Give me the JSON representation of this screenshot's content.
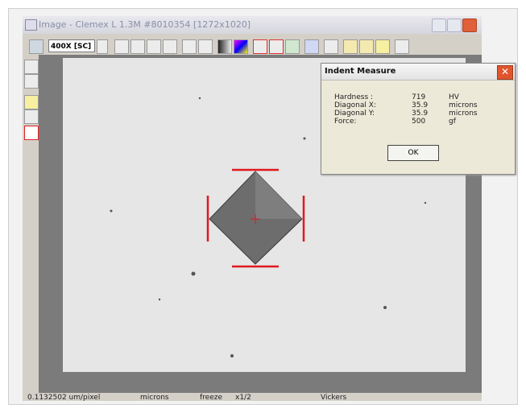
{
  "window": {
    "title": "Image - Clemex L 1.3M #8010354 [1272x1020]",
    "zoom": "400X [SC]"
  },
  "dialog": {
    "title": "Indent Measure",
    "rows": [
      [
        "Hardness  :",
        "719",
        "HV"
      ],
      [
        "Diagonal X:",
        "35.9",
        "microns"
      ],
      [
        "Diagonal Y:",
        "35.9",
        "microns"
      ],
      [
        "Force:",
        "500",
        "gf"
      ]
    ],
    "button": "OK"
  },
  "status": {
    "scale": "0.1132502 um/pixel",
    "units": "microns",
    "freeze": "freeze",
    "ratio": "x1/2",
    "method": "Vickers"
  }
}
